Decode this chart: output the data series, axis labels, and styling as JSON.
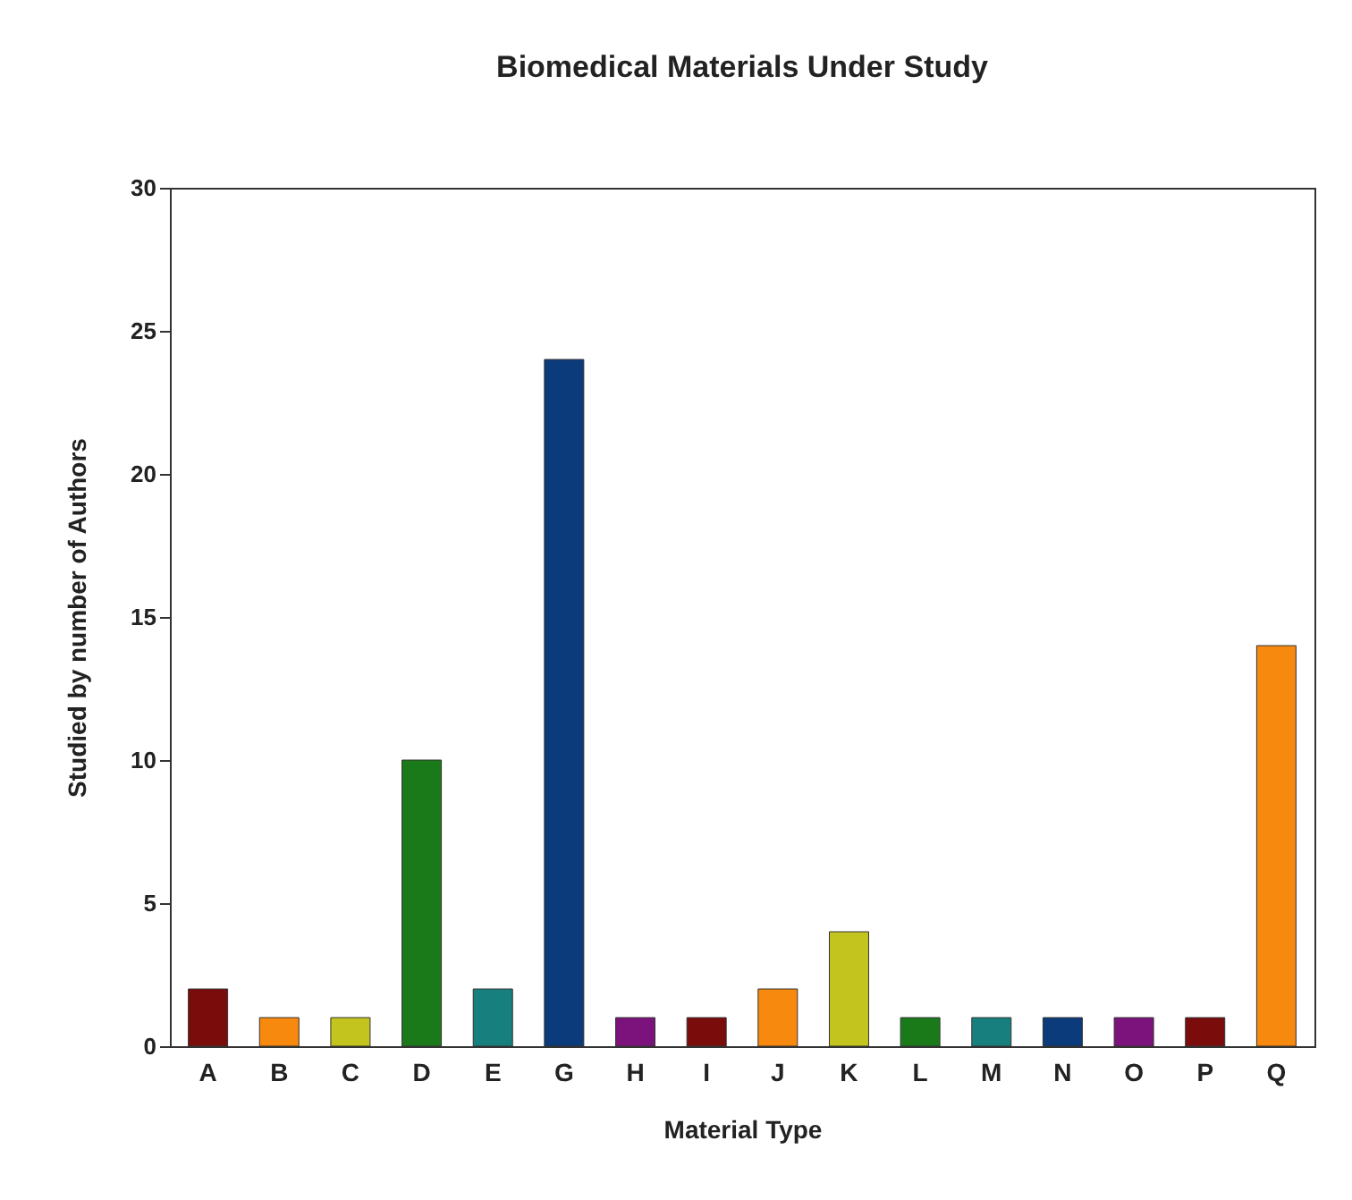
{
  "chart_data": {
    "type": "bar",
    "title": "Biomedical Materials Under Study",
    "xlabel": "Material Type",
    "ylabel": "Studied by number of Authors",
    "categories": [
      "A",
      "B",
      "C",
      "D",
      "E",
      "G",
      "H",
      "I",
      "J",
      "K",
      "L",
      "M",
      "N",
      "O",
      "P",
      "Q"
    ],
    "values": [
      2,
      1,
      1,
      10,
      2,
      24,
      1,
      1,
      2,
      4,
      1,
      1,
      1,
      1,
      1,
      14
    ],
    "colors": [
      "#7a0c0c",
      "#f7890f",
      "#c4c41e",
      "#1a7a1a",
      "#17807f",
      "#0b3b7a",
      "#7c137c",
      "#7a0c0c",
      "#f7890f",
      "#c4c41e",
      "#1a7a1a",
      "#17807f",
      "#0b3b7a",
      "#7c137c",
      "#7a0c0c",
      "#f7890f"
    ],
    "ylim": [
      0,
      30
    ],
    "yticks": [
      0,
      5,
      10,
      15,
      20,
      25,
      30
    ],
    "grid": false
  }
}
